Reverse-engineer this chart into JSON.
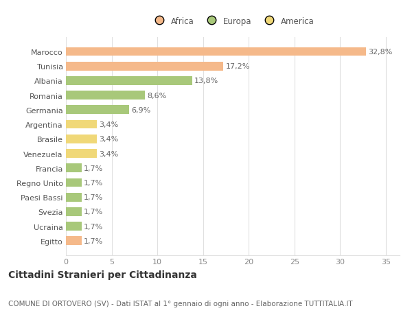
{
  "categories": [
    "Egitto",
    "Ucraina",
    "Svezia",
    "Paesi Bassi",
    "Regno Unito",
    "Francia",
    "Venezuela",
    "Brasile",
    "Argentina",
    "Germania",
    "Romania",
    "Albania",
    "Tunisia",
    "Marocco"
  ],
  "values": [
    1.7,
    1.7,
    1.7,
    1.7,
    1.7,
    1.7,
    3.4,
    3.4,
    3.4,
    6.9,
    8.6,
    13.8,
    17.2,
    32.8
  ],
  "labels": [
    "1,7%",
    "1,7%",
    "1,7%",
    "1,7%",
    "1,7%",
    "1,7%",
    "3,4%",
    "3,4%",
    "3,4%",
    "6,9%",
    "8,6%",
    "13,8%",
    "17,2%",
    "32,8%"
  ],
  "colors": [
    "#f5b98a",
    "#a8c87a",
    "#a8c87a",
    "#a8c87a",
    "#a8c87a",
    "#a8c87a",
    "#f0d878",
    "#f0d878",
    "#f0d878",
    "#a8c87a",
    "#a8c87a",
    "#a8c87a",
    "#f5b98a",
    "#f5b98a"
  ],
  "legend_labels": [
    "Africa",
    "Europa",
    "America"
  ],
  "legend_colors": [
    "#f5b98a",
    "#a8c87a",
    "#f0d878"
  ],
  "title": "Cittadini Stranieri per Cittadinanza",
  "subtitle": "COMUNE DI ORTOVERO (SV) - Dati ISTAT al 1° gennaio di ogni anno - Elaborazione TUTTITALIA.IT",
  "xlim": [
    0,
    36.5
  ],
  "xticks": [
    0,
    5,
    10,
    15,
    20,
    25,
    30,
    35
  ],
  "background_color": "#ffffff",
  "bar_height": 0.6,
  "grid_color": "#e0e0e0",
  "label_fontsize": 8,
  "ytick_fontsize": 8,
  "xtick_fontsize": 8,
  "title_fontsize": 10,
  "subtitle_fontsize": 7.5,
  "legend_fontsize": 8.5
}
